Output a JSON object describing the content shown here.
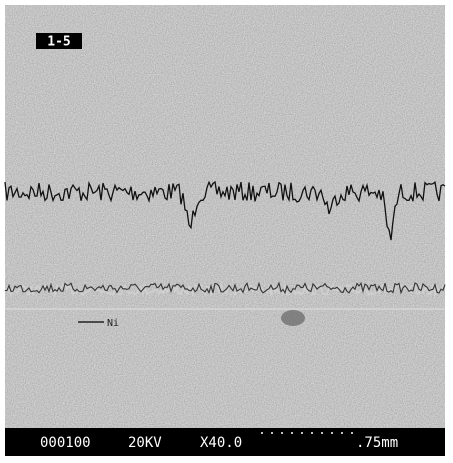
{
  "label": "1-5",
  "legend": {
    "line": "Ni"
  },
  "footer": {
    "counter": "000100",
    "voltage": "20KV",
    "magnification": "X40.0",
    "scale": ".75mm"
  }
}
